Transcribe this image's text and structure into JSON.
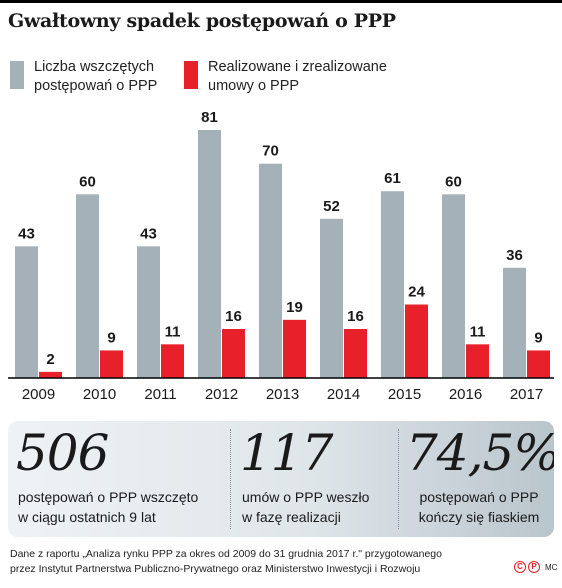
{
  "title": "Gwałtowny spadek postępowań o PPP",
  "colors": {
    "initiated": "#a4b1b9",
    "realized": "#e8202a",
    "axis": "#000000"
  },
  "legend": {
    "initiated": {
      "line1": "Liczba wszczętych",
      "line2": "postępowań o PPP"
    },
    "realized": {
      "line1": "Realizowane i zrealizowane",
      "line2": "umowy o PPP"
    }
  },
  "chart_data": {
    "type": "bar",
    "title": "Gwałtowny spadek postępowań o PPP",
    "categories": [
      "2009",
      "2010",
      "2011",
      "2012",
      "2013",
      "2014",
      "2015",
      "2016",
      "2017"
    ],
    "series": [
      {
        "name": "Liczba wszczętych postępowań o PPP",
        "values": [
          43,
          60,
          43,
          81,
          70,
          52,
          61,
          60,
          36
        ]
      },
      {
        "name": "Realizowane i zrealizowane umowy o PPP",
        "values": [
          2,
          9,
          11,
          16,
          19,
          16,
          24,
          11,
          9
        ]
      }
    ],
    "ylim": [
      0,
      81
    ],
    "xlabel": "",
    "ylabel": "",
    "grid": false,
    "legend_position": "top-left",
    "data_labels": true
  },
  "stats": [
    {
      "value": "506",
      "line1": "postępowań o PPP wszczęto",
      "line2": "w ciągu ostatnich 9 lat"
    },
    {
      "value": "117",
      "line1": "umów o PPP weszło",
      "line2": "w fazę realizacji"
    },
    {
      "value": "74,5%",
      "line1": "postępowań o PPP",
      "line2": "kończy się fiaskiem"
    }
  ],
  "source": {
    "line1": "Dane z raportu „Analiza rynku PPP za okres od 2009 do 31 grudnia 2017 r.\" przygotowanego",
    "line2": "przez  Instytut Partnerstwa Publiczno-Prywatnego oraz Ministerstwo Inwestycji i Rozwoju"
  },
  "credit": {
    "copyright": "C",
    "publisher": "P",
    "author": "MC"
  }
}
